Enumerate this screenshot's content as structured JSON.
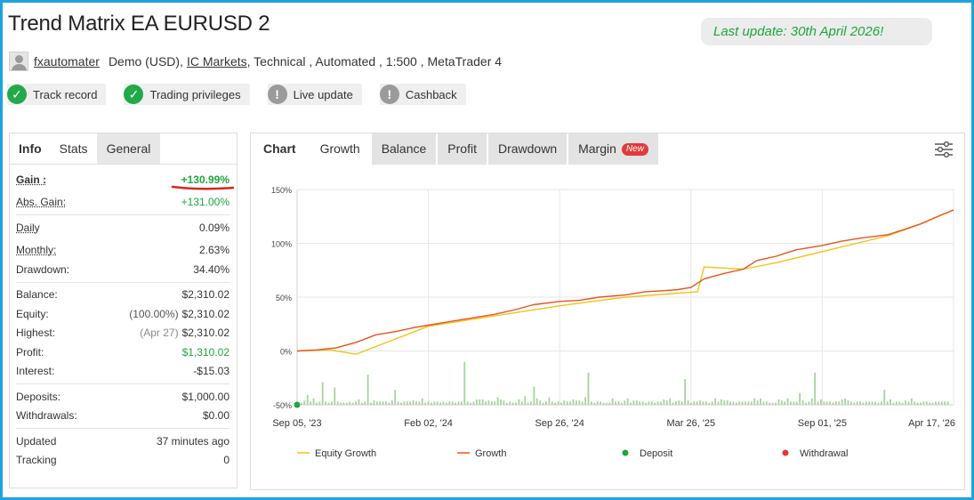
{
  "header": {
    "title": "Trend Matrix EA EURUSD 2",
    "last_update": "Last update: 30th April 2026!",
    "author": "fxautomater",
    "account_type": "Demo (USD),",
    "broker": "IC Markets",
    "details": ", Technical , Automated , 1:500 , MetaTrader 4"
  },
  "badges": [
    {
      "label": "Track record",
      "icon": "check-icon",
      "status": "ok"
    },
    {
      "label": "Trading privileges",
      "icon": "check-icon",
      "status": "ok"
    },
    {
      "label": "Live update",
      "icon": "exclamation-icon",
      "status": "warn"
    },
    {
      "label": "Cashback",
      "icon": "exclamation-icon",
      "status": "warn"
    }
  ],
  "left_tabs": [
    "Info",
    "Stats",
    "General"
  ],
  "stats": {
    "gain": {
      "label": "Gain :",
      "value": "+130.99%"
    },
    "abs_gain": {
      "label": "Abs. Gain:",
      "value": "+131.00%"
    },
    "daily": {
      "label": "Daily",
      "value": "0.09%"
    },
    "monthly": {
      "label": "Monthly:",
      "value": "2.63%"
    },
    "drawdown": {
      "label": "Drawdown:",
      "value": "34.40%"
    },
    "balance": {
      "label": "Balance:",
      "value": "$2,310.02"
    },
    "equity": {
      "label": "Equity:",
      "note": "(100.00%)",
      "value": "$2,310.02"
    },
    "highest": {
      "label": "Highest:",
      "note": "(Apr 27)",
      "value": "$2,310.02"
    },
    "profit": {
      "label": "Profit:",
      "value": "$1,310.02"
    },
    "interest": {
      "label": "Interest:",
      "value": "-$15.03"
    },
    "deposits": {
      "label": "Deposits:",
      "value": "$1,000.00"
    },
    "withdrawals": {
      "label": "Withdrawals:",
      "value": "$0.00"
    },
    "updated": {
      "label": "Updated",
      "value": "37 minutes ago"
    },
    "tracking": {
      "label": "Tracking",
      "value": "0"
    }
  },
  "right_tabs": {
    "chart": "Chart",
    "growth": "Growth",
    "balance": "Balance",
    "profit": "Profit",
    "drawdown": "Drawdown",
    "margin": "Margin",
    "new_tag": "New"
  },
  "colors": {
    "growth_line": "#e8531e",
    "equity_line": "#f0c419",
    "bars": "#a8d5a0",
    "deposit": "#1fa63c",
    "withdrawal": "#e03b3b",
    "accent_frame": "#1fa3e0"
  },
  "chart_data": {
    "type": "line",
    "ylim": [
      -50,
      150
    ],
    "y_tick_labels": [
      "150%",
      "100%",
      "50%",
      "0%",
      "-50%"
    ],
    "y_ticks": [
      150,
      100,
      50,
      0,
      -50
    ],
    "x_tick_labels": [
      "Sep 05, '23",
      "Feb 02, '24",
      "Sep 26, '24",
      "Mar 26, '25",
      "Sep 01, '25",
      "Apr 17, '26"
    ],
    "x_tick_positions": [
      0,
      0.2,
      0.4,
      0.6,
      0.8,
      1.0
    ],
    "legend": [
      "Equity Growth",
      "Growth",
      "Deposit",
      "Withdrawal"
    ],
    "legend_position": "bottom",
    "grid": true,
    "series": [
      {
        "name": "Growth",
        "x": [
          0,
          0.03,
          0.06,
          0.09,
          0.12,
          0.15,
          0.18,
          0.2,
          0.23,
          0.26,
          0.3,
          0.33,
          0.36,
          0.4,
          0.43,
          0.46,
          0.5,
          0.53,
          0.56,
          0.58,
          0.6,
          0.62,
          0.65,
          0.68,
          0.7,
          0.73,
          0.76,
          0.8,
          0.83,
          0.86,
          0.9,
          0.92,
          0.95,
          0.98,
          1.0
        ],
        "y": [
          0,
          1,
          3,
          8,
          15,
          18,
          22,
          24,
          27,
          30,
          34,
          38,
          43,
          46,
          47,
          50,
          52,
          55,
          56,
          57,
          59,
          67,
          72,
          76,
          84,
          88,
          94,
          98,
          102,
          105,
          108,
          112,
          118,
          126,
          131
        ]
      },
      {
        "name": "Equity Growth",
        "x": [
          0,
          0.05,
          0.09,
          0.2,
          0.4,
          0.5,
          0.61,
          0.62,
          0.68,
          0.73,
          0.9,
          0.95,
          1.0
        ],
        "y": [
          0,
          1,
          -3,
          23,
          42,
          50,
          55,
          78,
          76,
          82,
          107,
          118,
          131
        ]
      }
    ],
    "bars_note": "Daily trade profit bars (green), heights mostly small with occasional spikes up to ~100% scale"
  },
  "chart_bars": {
    "heights": [
      2,
      4,
      9,
      3,
      6,
      2,
      3,
      21,
      3,
      2,
      3,
      16,
      3,
      2,
      2,
      2,
      3,
      2,
      3,
      5,
      2,
      3,
      28,
      2,
      4,
      3,
      3,
      3,
      3,
      2,
      4,
      14,
      3,
      2,
      3,
      3,
      3,
      4,
      3,
      3,
      6,
      2,
      3,
      2,
      3,
      3,
      2,
      3,
      2,
      3,
      3,
      2,
      3,
      3,
      40,
      3,
      2,
      3,
      5,
      5,
      5,
      3,
      4,
      3,
      3,
      7,
      5,
      4,
      2,
      3,
      2,
      2,
      5,
      3,
      8,
      2,
      3,
      17,
      6,
      4,
      2,
      3,
      7,
      3,
      2,
      3,
      2,
      4,
      3,
      3,
      5,
      4,
      4,
      3,
      7,
      30,
      3,
      2,
      3,
      3,
      2,
      2,
      2,
      6,
      3,
      3,
      2,
      4,
      6,
      2,
      4,
      4,
      3,
      3,
      2,
      3,
      3,
      2,
      3,
      3,
      5,
      4,
      6,
      2,
      3,
      4,
      3,
      24,
      4,
      2,
      3,
      3,
      4,
      3,
      3,
      2,
      3,
      6,
      3,
      5,
      4,
      4,
      3,
      3,
      2,
      3,
      3,
      3,
      3,
      3,
      6,
      4,
      6,
      3,
      3,
      2,
      2,
      2,
      5,
      4,
      3,
      6,
      3,
      3,
      3,
      11,
      4,
      2,
      3,
      6,
      30,
      3,
      5,
      3,
      3,
      3,
      2,
      3,
      3,
      5,
      6,
      4,
      3,
      2,
      3,
      3,
      2,
      3,
      3,
      3,
      3,
      2,
      3,
      14,
      3,
      5,
      2,
      3,
      3,
      2,
      4,
      3,
      6,
      3,
      2,
      2,
      3,
      3,
      2,
      2,
      3,
      3,
      3,
      3,
      3
    ]
  }
}
